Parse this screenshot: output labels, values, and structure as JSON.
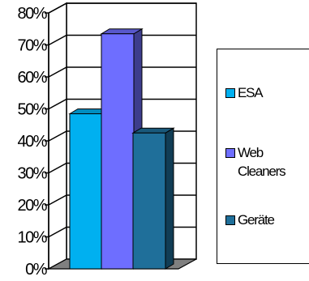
{
  "chart_data": {
    "type": "bar",
    "style": "3d",
    "categories": [
      "ESA",
      "Web Cleaners",
      "Geräte"
    ],
    "values": [
      50,
      75,
      44
    ],
    "unit": "%",
    "ylim": [
      0,
      80
    ],
    "yticks": [
      "0%",
      "10%",
      "20%",
      "30%",
      "40%",
      "50%",
      "60%",
      "70%",
      "80%"
    ],
    "grid": true,
    "legend_position": "right",
    "series": [
      {
        "name": "ESA",
        "value": 50,
        "color": "#00B0F0"
      },
      {
        "name": "Web Cleaners",
        "value": 75,
        "color": "#6E6EFF"
      },
      {
        "name": "Geräte",
        "value": 44,
        "color": "#1F6F9A"
      }
    ],
    "colors": {
      "floor": "#808080",
      "grid": "#000000",
      "wall": "#ffffff"
    }
  },
  "legend": {
    "items": [
      {
        "label": "ESA"
      },
      {
        "label": "Web Cleaners"
      },
      {
        "label": "Geräte"
      }
    ]
  }
}
